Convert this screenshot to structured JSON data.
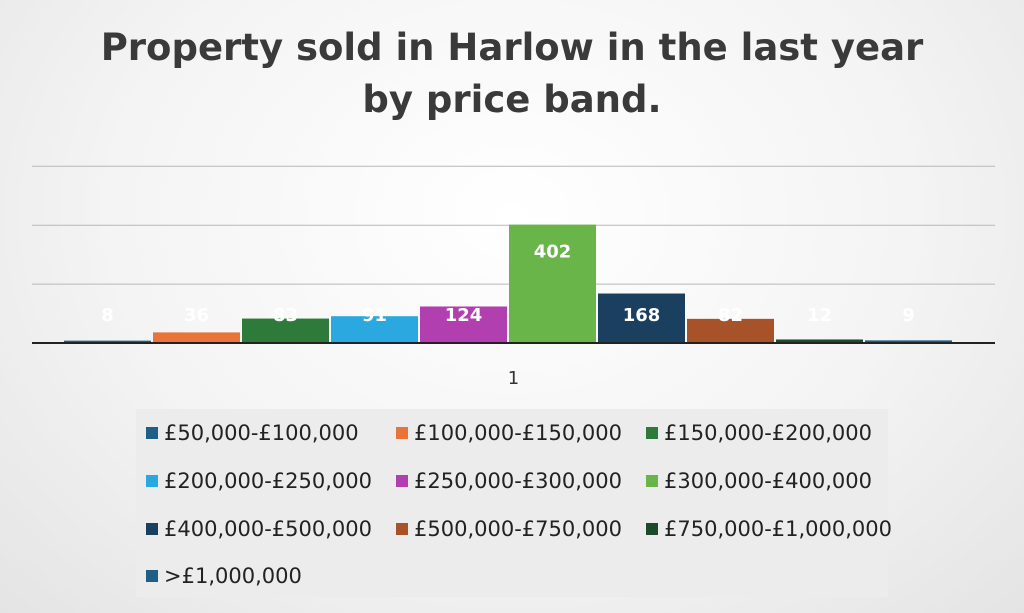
{
  "chart_data": {
    "type": "bar",
    "title": "Property sold in Harlow in the last year by price band.",
    "categories": [
      "1"
    ],
    "xlabel": "",
    "ylabel": "",
    "ylim": [
      0,
      600
    ],
    "grid": true,
    "legend_position": "bottom",
    "series": [
      {
        "name": "£50,000-£100,000",
        "values": [
          8
        ],
        "color": "#1f5f86"
      },
      {
        "name": "£100,000-£150,000",
        "values": [
          36
        ],
        "color": "#e8743b"
      },
      {
        "name": "£150,000-£200,000",
        "values": [
          83
        ],
        "color": "#2e7a3a"
      },
      {
        "name": "£200,000-£250,000",
        "values": [
          91
        ],
        "color": "#2aa8df"
      },
      {
        "name": "£250,000-£300,000",
        "values": [
          124
        ],
        "color": "#b23fb0"
      },
      {
        "name": "£300,000-£400,000",
        "values": [
          402
        ],
        "color": "#6ab54a"
      },
      {
        "name": "£400,000-£500,000",
        "values": [
          168
        ],
        "color": "#1b3f5e"
      },
      {
        "name": "£500,000-£750,000",
        "values": [
          82
        ],
        "color": "#a8522a"
      },
      {
        "name": "£750,000-£1,000,000",
        "values": [
          12
        ],
        "color": "#1c4a2a"
      },
      {
        "name": ">£1,000,000",
        "values": [
          9
        ],
        "color": "#1f5f86"
      }
    ]
  }
}
